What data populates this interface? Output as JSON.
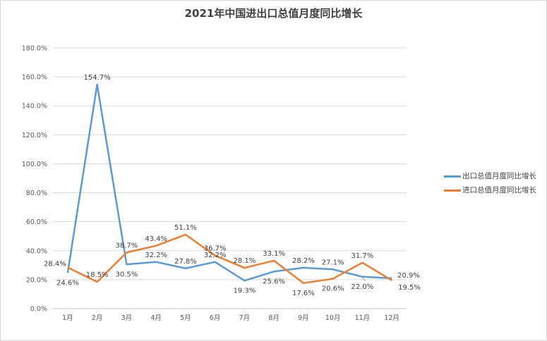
{
  "chart_data": {
    "type": "line",
    "title": "2021年中国进出口总值月度同比增长",
    "categories": [
      "1月",
      "2月",
      "3月",
      "4月",
      "5月",
      "6月",
      "7月",
      "8月",
      "9月",
      "10月",
      "11月",
      "12月"
    ],
    "y_ticks": [
      "0.0%",
      "20.0%",
      "40.0%",
      "60.0%",
      "80.0%",
      "100.0%",
      "120.0%",
      "140.0%",
      "160.0%",
      "180.0%"
    ],
    "ylim": [
      0,
      180
    ],
    "grid": true,
    "legend_position": "right",
    "series": [
      {
        "name": "出口总值月度同比增长",
        "color": "#5b9bd5",
        "values": [
          24.6,
          154.7,
          30.5,
          32.2,
          27.8,
          32.2,
          19.3,
          25.6,
          28.2,
          27.1,
          22.0,
          20.9
        ],
        "labels": [
          "24.6%",
          "154.7%",
          "30.5%",
          "32.2%",
          "27.8%",
          "32.2%",
          "19.3%",
          "25.6%",
          "28.2%",
          "27.1%",
          "22.0%",
          "20.9%"
        ]
      },
      {
        "name": "进口总值月度同比增长",
        "color": "#ed7d31",
        "values": [
          28.4,
          18.5,
          38.7,
          43.4,
          51.1,
          36.7,
          28.1,
          33.1,
          17.6,
          20.6,
          31.7,
          19.5
        ],
        "labels": [
          "28.4%",
          "18.5%",
          "38.7%",
          "43.4%",
          "51.1%",
          "36.7%",
          "28.1%",
          "33.1%",
          "17.6%",
          "20.6%",
          "31.7%",
          "19.5%"
        ]
      }
    ]
  }
}
